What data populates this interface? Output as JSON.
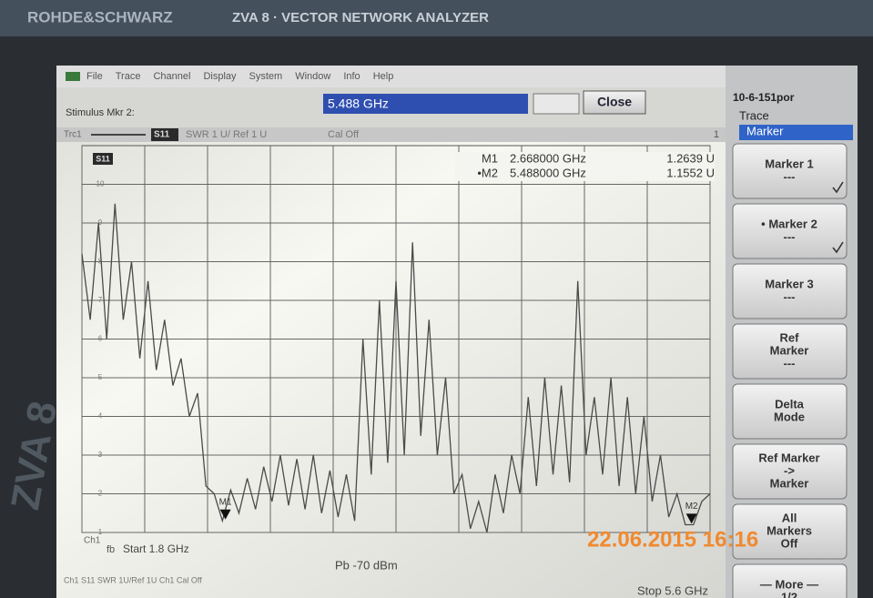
{
  "branding": {
    "maker": "ROHDE&SCHWARZ",
    "model": "ZVA 8 · VECTOR NETWORK ANALYZER",
    "side_label": "ZVA 8"
  },
  "menu": [
    "File",
    "Trace",
    "Channel",
    "Display",
    "System",
    "Window",
    "Info",
    "Help"
  ],
  "window_id": "10-6-151por",
  "stimulus": {
    "label": "Stimulus Mkr 2:",
    "input": "5.488 GHz",
    "button": "Close"
  },
  "trace_header": {
    "trace": "Trc1",
    "param": "S11",
    "format": "SWR  1 U/  Ref 1 U",
    "cal": "Cal Off",
    "channel": "1"
  },
  "readouts": [
    {
      "name": "M1",
      "freq": "2.668000 GHz",
      "value": "1.2639 U"
    },
    {
      "name": "•M2",
      "freq": "5.488000 GHz",
      "value": "1.1552 U"
    }
  ],
  "softkeys": {
    "tabs": [
      "Trace",
      "Marker"
    ],
    "buttons": [
      {
        "lines": [
          "Marker 1",
          "---"
        ],
        "checked": true
      },
      {
        "lines": [
          "• Marker 2",
          "---"
        ],
        "checked": true
      },
      {
        "lines": [
          "Marker 3",
          "---"
        ],
        "checked": false
      },
      {
        "lines": [
          "Ref",
          "Marker",
          "---"
        ],
        "checked": false
      },
      {
        "lines": [
          "Delta",
          "Mode"
        ],
        "checked": false
      },
      {
        "lines": [
          "Ref Marker",
          "->",
          "Marker"
        ],
        "checked": false
      },
      {
        "lines": [
          "All",
          "Markers",
          "Off"
        ],
        "checked": false
      },
      {
        "lines": [
          "— More —",
          "1/2"
        ],
        "checked": false
      }
    ]
  },
  "footer": {
    "channel": "Ch1",
    "fb": "fb",
    "start": "Start 1.8 GHz",
    "power": "Pb -70 dBm",
    "stop": "Stop 5.6 GHz",
    "status": "Ch1  S11  SWR  1U/Ref 1U  Ch1  Cal Off"
  },
  "timestamp": "22.06.2015  16:16",
  "chart_data": {
    "type": "line",
    "x": [
      1.8,
      1.85,
      1.9,
      1.95,
      2.0,
      2.05,
      2.1,
      2.15,
      2.2,
      2.25,
      2.3,
      2.35,
      2.4,
      2.45,
      2.5,
      2.55,
      2.6,
      2.65,
      2.7,
      2.75,
      2.8,
      2.85,
      2.9,
      2.95,
      3.0,
      3.05,
      3.1,
      3.15,
      3.2,
      3.25,
      3.3,
      3.35,
      3.4,
      3.45,
      3.5,
      3.55,
      3.6,
      3.65,
      3.7,
      3.75,
      3.8,
      3.85,
      3.9,
      3.95,
      4.0,
      4.05,
      4.1,
      4.15,
      4.2,
      4.25,
      4.3,
      4.35,
      4.4,
      4.45,
      4.5,
      4.55,
      4.6,
      4.65,
      4.7,
      4.75,
      4.8,
      4.85,
      4.9,
      4.95,
      5.0,
      5.05,
      5.1,
      5.15,
      5.2,
      5.25,
      5.3,
      5.35,
      5.4,
      5.45,
      5.5,
      5.55,
      5.6
    ],
    "series": [
      {
        "name": "S11",
        "color": "#4a4a4a",
        "values": [
          8.2,
          6.5,
          9.0,
          6.0,
          9.5,
          6.5,
          8.0,
          5.5,
          7.5,
          5.2,
          6.5,
          4.8,
          5.5,
          4.0,
          4.6,
          2.2,
          2.0,
          1.3,
          2.1,
          1.5,
          2.4,
          1.6,
          2.7,
          1.8,
          3.0,
          1.7,
          2.9,
          1.6,
          3.0,
          1.5,
          2.6,
          1.4,
          2.5,
          1.3,
          6.0,
          2.5,
          7.0,
          2.8,
          7.5,
          3.0,
          8.5,
          3.5,
          6.5,
          3.0,
          5.0,
          2.0,
          2.5,
          1.1,
          1.8,
          1.0,
          2.5,
          1.5,
          3.0,
          2.0,
          4.5,
          2.2,
          5.0,
          2.5,
          4.8,
          2.3,
          7.5,
          3.0,
          4.5,
          2.5,
          5.0,
          2.2,
          4.5,
          2.0,
          4.0,
          1.8,
          3.0,
          1.4,
          2.0,
          1.2,
          1.2,
          1.8,
          2.0
        ]
      }
    ],
    "xlim": [
      1.8,
      5.6
    ],
    "ylim": [
      1,
      11
    ],
    "yticks": [
      1,
      2,
      3,
      4,
      5,
      6,
      7,
      8,
      9,
      10
    ],
    "xgrid": [
      1.8,
      2.18,
      2.56,
      2.94,
      3.32,
      3.7,
      4.08,
      4.46,
      4.84,
      5.22,
      5.6
    ],
    "markers": [
      {
        "name": "M1",
        "x": 2.668,
        "value": 1.2639
      },
      {
        "name": "M2",
        "x": 5.488,
        "value": 1.1552
      }
    ]
  }
}
